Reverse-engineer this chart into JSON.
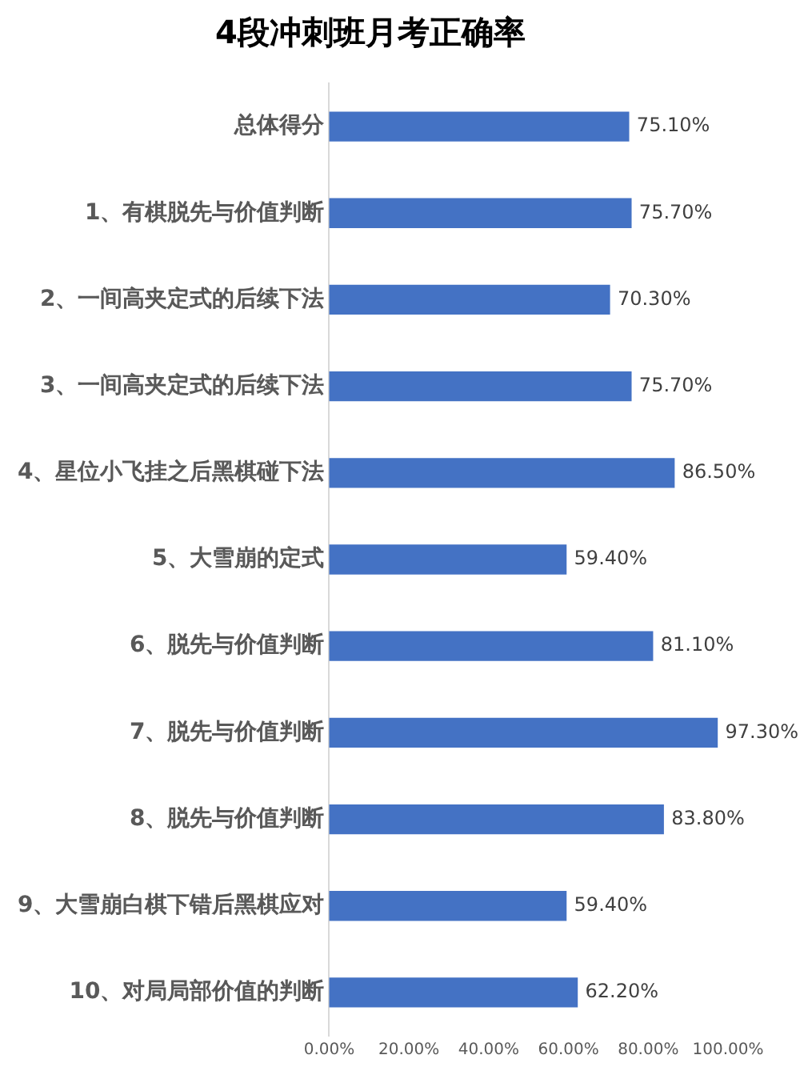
{
  "chart_data": {
    "type": "bar",
    "orientation": "horizontal",
    "title": "4段冲刺班月考正确率",
    "categories": [
      "总体得分",
      "1、有棋脱先与价值判断",
      "2、一间高夹定式的后续下法",
      "3、一间高夹定式的后续下法",
      "4、星位小飞挂之后黑棋碰下法",
      "5、大雪崩的定式",
      "6、脱先与价值判断",
      "7、脱先与价值判断",
      "8、脱先与价值判断",
      "9、大雪崩白棋下错后黑棋应对",
      "10、对局局部价值的判断"
    ],
    "values": [
      75.1,
      75.7,
      70.3,
      75.7,
      86.5,
      59.4,
      81.1,
      97.3,
      83.8,
      59.4,
      62.2
    ],
    "value_labels": [
      "75.10%",
      "75.70%",
      "70.30%",
      "75.70%",
      "86.50%",
      "59.40%",
      "81.10%",
      "97.30%",
      "83.80%",
      "59.40%",
      "62.20%"
    ],
    "color": "#4472c4",
    "xlim": [
      0,
      100
    ],
    "xticks": [
      {
        "value": 0,
        "label": "0.00%"
      },
      {
        "value": 20,
        "label": "20.00%"
      },
      {
        "value": 40,
        "label": "40.00%"
      },
      {
        "value": 60,
        "label": "60.00%"
      },
      {
        "value": 80,
        "label": "80.00%"
      },
      {
        "value": 100,
        "label": "100.00%"
      }
    ],
    "grid": false,
    "legend": false
  }
}
